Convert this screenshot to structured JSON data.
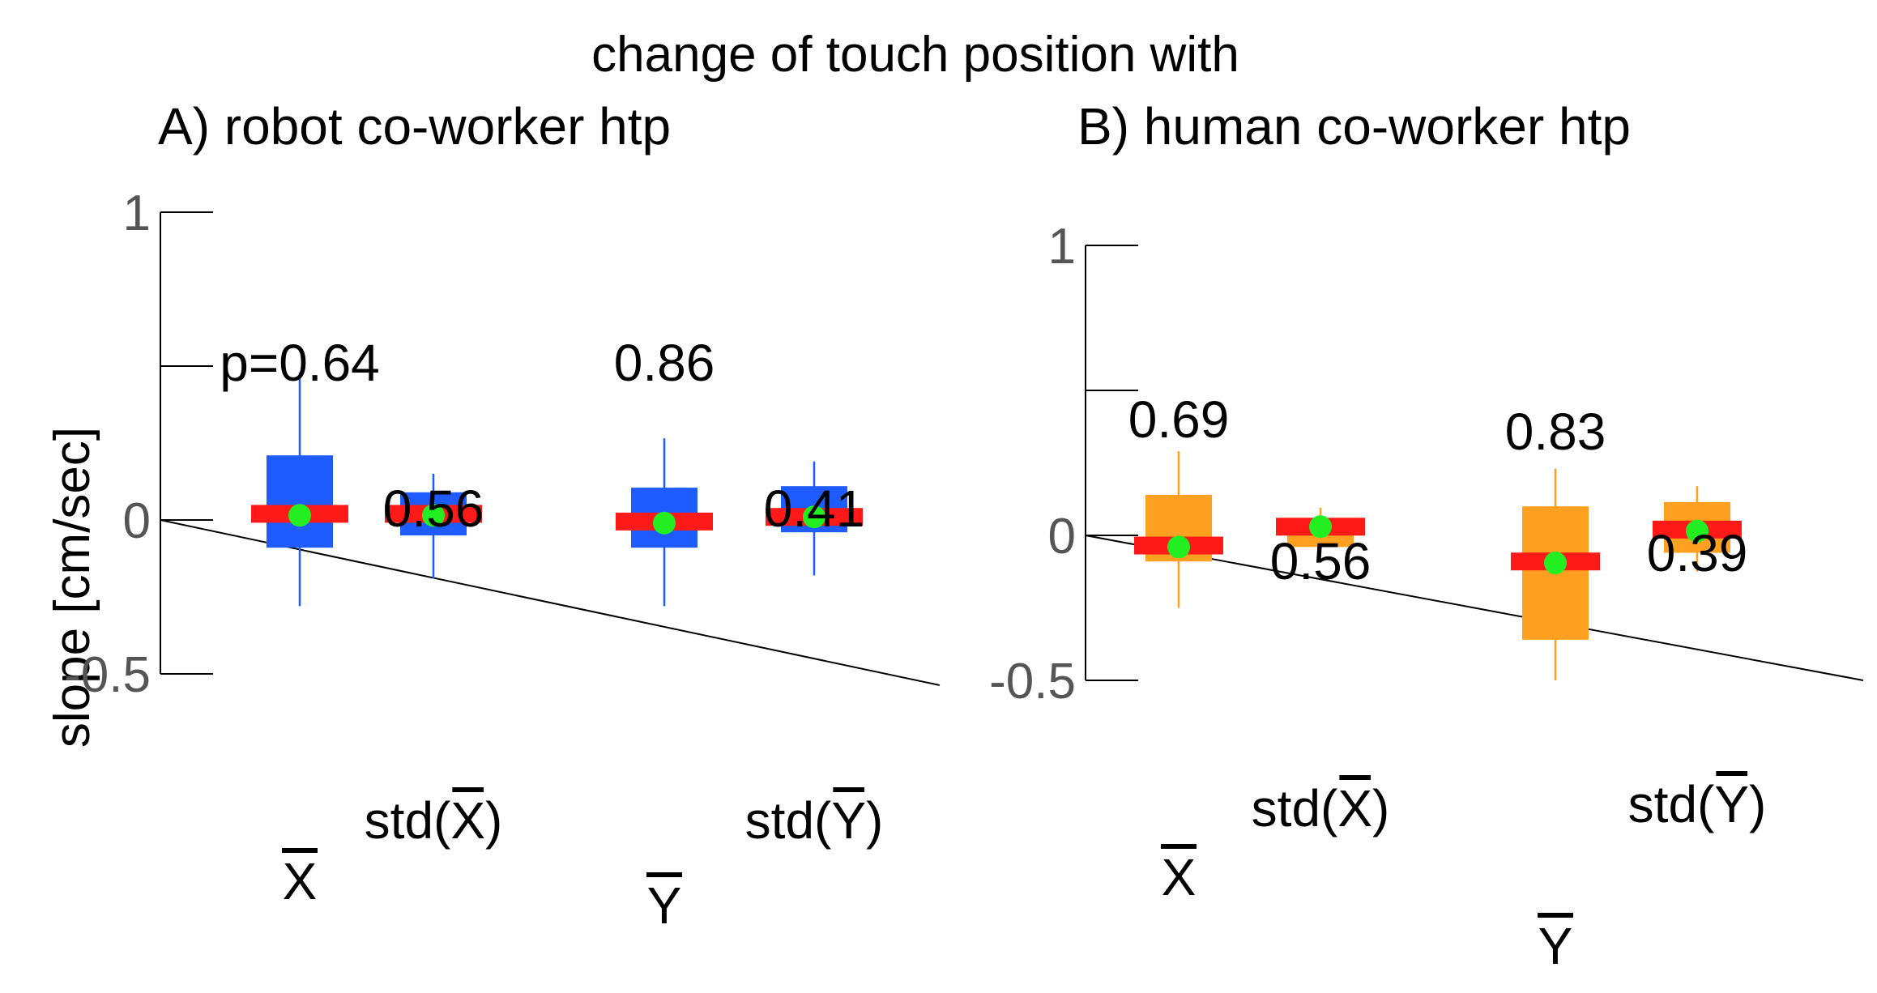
{
  "figure": {
    "title": "change of touch position with"
  },
  "chart_data": [
    {
      "type": "box",
      "title": "A) robot co-worker htp",
      "ylabel": "slope [cm/sec]",
      "ylim": [
        -0.5,
        1
      ],
      "yticks": [
        -0.5,
        0,
        1
      ],
      "ytick_labels": [
        "-0.5",
        "0",
        "1"
      ],
      "colors": {
        "box": "#1f5cff",
        "median": "#ff1a1a",
        "mean": "#22ee22"
      },
      "boxes": [
        {
          "label": "X",
          "overline": true,
          "std": false,
          "whisker_low": -0.28,
          "q1": -0.09,
          "median": 0.02,
          "q3": 0.21,
          "whisker_high": 0.48,
          "mean": 0.015,
          "p_label": "p=0.64"
        },
        {
          "label": "X",
          "overline": true,
          "std": true,
          "whisker_low": -0.19,
          "q1": -0.05,
          "median": 0.02,
          "q3": 0.09,
          "whisker_high": 0.15,
          "mean": 0.015,
          "p_label": "0.56"
        },
        {
          "label": "Y",
          "overline": true,
          "std": false,
          "whisker_low": -0.28,
          "q1": -0.09,
          "median": -0.005,
          "q3": 0.105,
          "whisker_high": 0.265,
          "mean": -0.01,
          "p_label": "0.86"
        },
        {
          "label": "Y",
          "overline": true,
          "std": true,
          "whisker_low": -0.18,
          "q1": -0.04,
          "median": 0.01,
          "q3": 0.11,
          "whisker_high": 0.19,
          "mean": 0.01,
          "p_label": "0.41"
        }
      ]
    },
    {
      "type": "box",
      "title": "B) human co-worker htp",
      "ylabel": "",
      "ylim": [
        -0.5,
        1
      ],
      "yticks": [
        -0.5,
        0,
        1
      ],
      "ytick_labels": [
        "-0.5",
        "0",
        "1"
      ],
      "colors": {
        "box": "#ffa020",
        "median": "#ff1a1a",
        "mean": "#22ee22"
      },
      "boxes": [
        {
          "label": "X",
          "overline": true,
          "std": false,
          "whisker_low": -0.25,
          "q1": -0.09,
          "median": -0.035,
          "q3": 0.14,
          "whisker_high": 0.29,
          "mean": -0.04,
          "p_label": "0.69"
        },
        {
          "label": "X",
          "overline": true,
          "std": true,
          "whisker_low": -0.05,
          "q1": -0.04,
          "median": 0.03,
          "q3": 0.06,
          "whisker_high": 0.095,
          "mean": 0.03,
          "p_label": "0.56"
        },
        {
          "label": "Y",
          "overline": true,
          "std": false,
          "whisker_low": -0.5,
          "q1": -0.36,
          "median": -0.09,
          "q3": 0.1,
          "whisker_high": 0.23,
          "mean": -0.095,
          "p_label": "0.83"
        },
        {
          "label": "Y",
          "overline": true,
          "std": true,
          "whisker_low": -0.125,
          "q1": -0.06,
          "median": 0.02,
          "q3": 0.115,
          "whisker_high": 0.17,
          "mean": 0.015,
          "p_label": "0.39"
        }
      ]
    }
  ]
}
